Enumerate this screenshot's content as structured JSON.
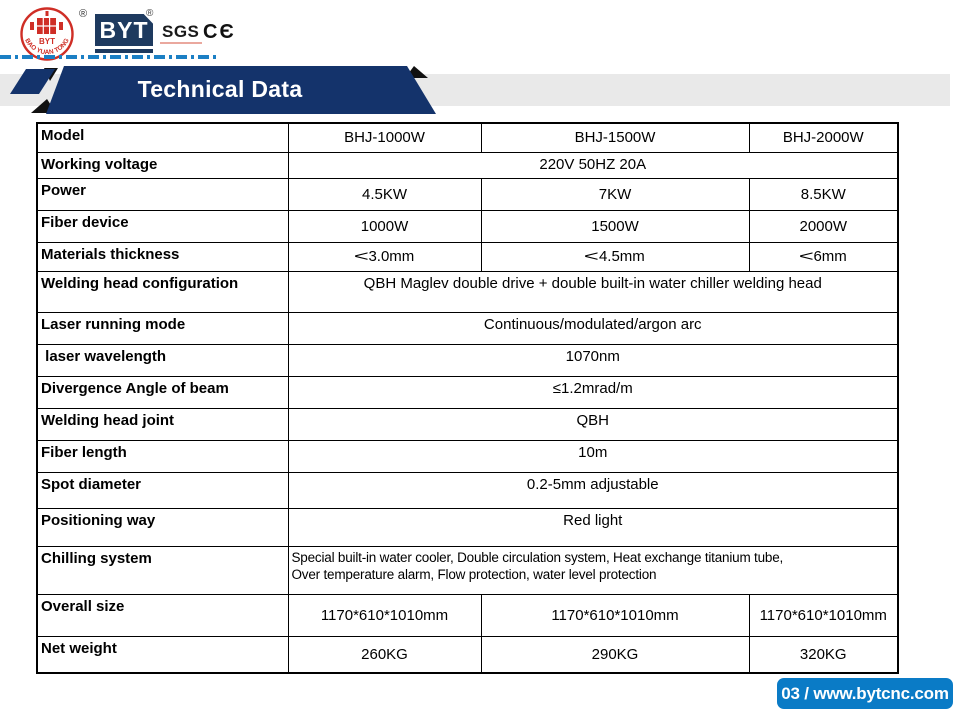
{
  "header": {
    "stamp": {
      "byt": "BYT",
      "arc_text": "BAO YUAN TONG",
      "registered": "®"
    },
    "logo": {
      "text": "BYT",
      "registered": "®"
    },
    "certs": {
      "sgs": "SGS",
      "ce": "CЄ"
    },
    "banner_title": "Technical Data"
  },
  "table": {
    "rows": [
      {
        "label": "Model",
        "values": [
          "BHJ-1000W",
          "BHJ-1500W",
          "BHJ-2000W"
        ]
      },
      {
        "label": "Working voltage",
        "values": [
          "220V 50HZ 20A"
        ]
      },
      {
        "label": "Power",
        "values": [
          "4.5KW",
          "7KW",
          "8.5KW"
        ]
      },
      {
        "label": "Fiber device",
        "values": [
          "1000W",
          "1500W",
          "2000W"
        ]
      },
      {
        "label": "Materials thickness",
        "values": [
          "<3.0mm",
          "<4.5mm",
          "<6mm"
        ]
      },
      {
        "label": "Welding head configuration",
        "values": [
          "QBH Maglev double drive + double built-in water chiller welding head"
        ]
      },
      {
        "label": "Laser running mode",
        "values": [
          "Continuous/modulated/argon arc"
        ]
      },
      {
        "label": " laser wavelength",
        "values": [
          "1070nm"
        ]
      },
      {
        "label": "Divergence Angle of beam",
        "values": [
          "≤1.2mrad/m"
        ]
      },
      {
        "label": "Welding head joint",
        "values": [
          "QBH"
        ]
      },
      {
        "label": "Fiber length",
        "values": [
          "10m"
        ]
      },
      {
        "label": "Spot diameter",
        "values": [
          "0.2-5mm adjustable"
        ]
      },
      {
        "label": "Positioning way",
        "values": [
          "Red light"
        ]
      },
      {
        "label": "Chilling system",
        "values": [
          "Special built-in water cooler, Double circulation system, Heat exchange titanium tube,\nOver temperature alarm, Flow protection, water level protection"
        ]
      },
      {
        "label": "Overall size",
        "values": [
          "1170*610*1010mm",
          "1170*610*1010mm",
          "1170*610*1010mm"
        ]
      },
      {
        "label": "Net weight",
        "values": [
          "260KG",
          "290KG",
          "320KG"
        ]
      }
    ]
  },
  "footer": {
    "page_label": "03 / www.bytcnc.com"
  },
  "colors": {
    "banner_navy": "#14336B",
    "logo_navy": "#1E3A5F",
    "footer_blue": "#0A7BC6",
    "dash_blue": "#1B7FC4",
    "stamp_red": "#CF2E26",
    "band_gray": "#E9E9E9",
    "border_black": "#000000"
  }
}
